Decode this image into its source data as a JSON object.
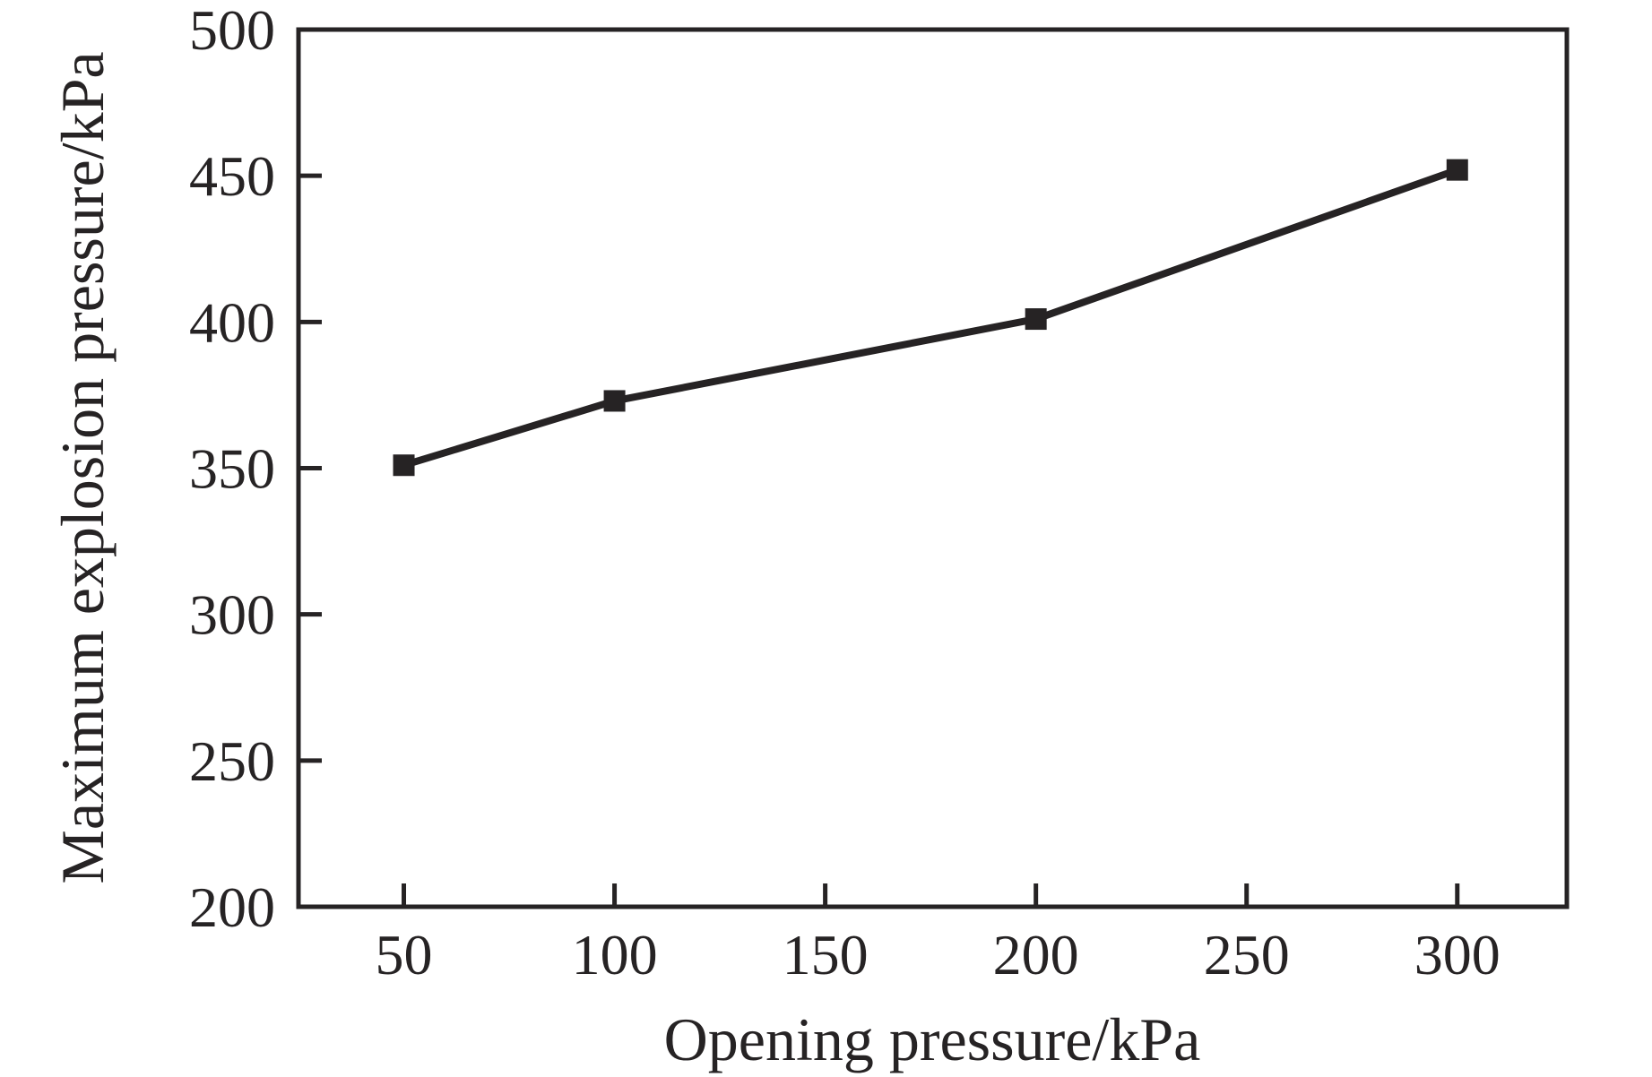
{
  "figure": {
    "background_color": "#ffffff",
    "ink_color": "#262324"
  },
  "chart_data": {
    "type": "line",
    "title": "",
    "xlabel": "Opening pressure/kPa",
    "ylabel": "Maximum explosion pressure/kPa",
    "x": [
      50,
      100,
      200,
      300
    ],
    "y": [
      351,
      373,
      401,
      452
    ],
    "series": [
      {
        "name": "Maximum explosion pressure",
        "x": [
          50,
          100,
          200,
          300
        ],
        "values": [
          351,
          373,
          401,
          452
        ],
        "marker": "filled-square",
        "color": "#262324"
      }
    ],
    "xticks": [
      50,
      100,
      150,
      200,
      250,
      300
    ],
    "yticks": [
      200,
      250,
      300,
      350,
      400,
      450,
      500
    ],
    "xtick_labels": [
      "50",
      "100",
      "150",
      "200",
      "250",
      "300"
    ],
    "ytick_labels": [
      "200",
      "250",
      "300",
      "350",
      "400",
      "450",
      "500"
    ],
    "xlim": [
      25,
      326
    ],
    "ylim": [
      200,
      500
    ],
    "grid": false,
    "legend": null,
    "frame": "full-box",
    "tick_direction": "in"
  }
}
